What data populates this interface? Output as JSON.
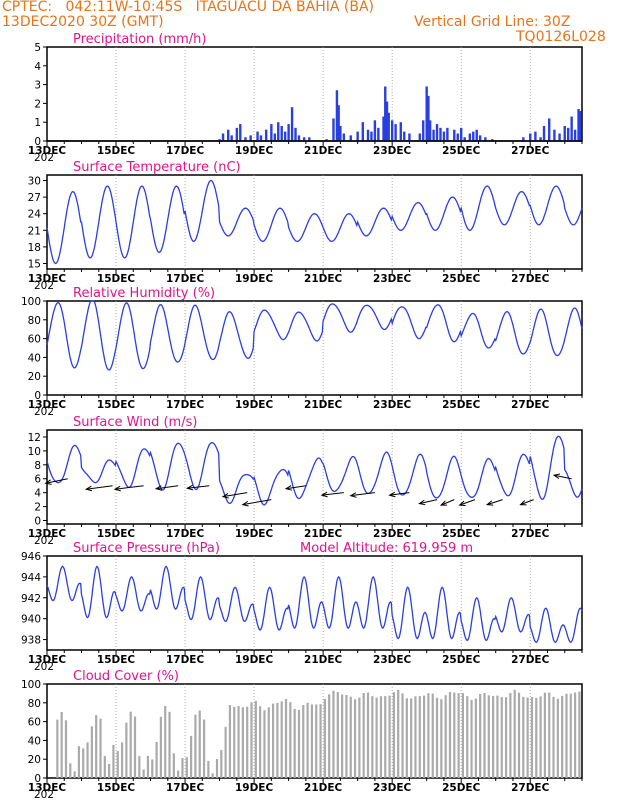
{
  "header": {
    "line1": "CPTEC:   042:11W-10:45S   ITAGUACU DA BAHIA (BA)",
    "line2": "13DEC2020 30Z (GMT)",
    "grid_note": "Vertical Grid Line: 30Z",
    "code": "TQ0126L028"
  },
  "colors": {
    "header": "#e8731a",
    "titles": "#e0148a",
    "series": "#2a3fe0",
    "bars": "#2a3fe0",
    "cloud": "#aaaaaa",
    "arrows": "#000000"
  },
  "x_axis": {
    "day_labels": [
      "13DEC",
      "15DEC",
      "17DEC",
      "19DEC",
      "21DEC",
      "23DEC",
      "25DEC",
      "27DEC"
    ],
    "day_label_offsets_days": [
      0,
      2,
      4,
      6,
      8,
      10,
      12,
      14
    ],
    "total_days": 15.5,
    "cut_label": "202"
  },
  "chart_data": [
    {
      "id": "precip",
      "type": "bar",
      "title": "Precipitation (mm/h)",
      "ylim": [
        0,
        5
      ],
      "yticks": [
        0,
        1,
        2,
        3,
        4,
        5
      ],
      "events": [
        [
          5.0,
          0.1
        ],
        [
          5.1,
          0.4
        ],
        [
          5.25,
          0.6
        ],
        [
          5.35,
          0.3
        ],
        [
          5.5,
          0.7
        ],
        [
          5.6,
          0.9
        ],
        [
          5.75,
          0.2
        ],
        [
          5.9,
          0.3
        ],
        [
          6.1,
          0.5
        ],
        [
          6.2,
          0.3
        ],
        [
          6.35,
          0.6
        ],
        [
          6.5,
          0.9
        ],
        [
          6.6,
          0.4
        ],
        [
          6.7,
          1.0
        ],
        [
          6.8,
          0.8
        ],
        [
          6.9,
          0.5
        ],
        [
          7.0,
          0.9
        ],
        [
          7.1,
          1.8
        ],
        [
          7.2,
          0.7
        ],
        [
          7.3,
          0.3
        ],
        [
          7.45,
          0.2
        ],
        [
          7.6,
          0.2
        ],
        [
          8.1,
          0.1
        ],
        [
          8.3,
          1.2
        ],
        [
          8.4,
          2.7
        ],
        [
          8.45,
          1.9
        ],
        [
          8.5,
          0.8
        ],
        [
          8.6,
          0.4
        ],
        [
          8.8,
          0.3
        ],
        [
          9.0,
          0.5
        ],
        [
          9.15,
          1.0
        ],
        [
          9.3,
          0.6
        ],
        [
          9.4,
          0.5
        ],
        [
          9.5,
          1.1
        ],
        [
          9.6,
          0.7
        ],
        [
          9.75,
          1.3
        ],
        [
          9.8,
          2.9
        ],
        [
          9.85,
          2.1
        ],
        [
          9.9,
          1.5
        ],
        [
          10.0,
          1.1
        ],
        [
          10.1,
          0.9
        ],
        [
          10.25,
          1.0
        ],
        [
          10.35,
          0.5
        ],
        [
          10.5,
          0.4
        ],
        [
          10.8,
          0.4
        ],
        [
          10.9,
          1.1
        ],
        [
          11.0,
          2.9
        ],
        [
          11.05,
          2.4
        ],
        [
          11.1,
          1.1
        ],
        [
          11.2,
          0.6
        ],
        [
          11.3,
          0.9
        ],
        [
          11.4,
          0.7
        ],
        [
          11.5,
          0.5
        ],
        [
          11.6,
          0.7
        ],
        [
          11.8,
          0.6
        ],
        [
          11.9,
          0.4
        ],
        [
          12.0,
          0.7
        ],
        [
          12.1,
          0.2
        ],
        [
          12.25,
          0.4
        ],
        [
          12.35,
          0.5
        ],
        [
          12.45,
          0.6
        ],
        [
          12.55,
          0.3
        ],
        [
          12.7,
          0.2
        ],
        [
          12.9,
          0.1
        ],
        [
          13.8,
          0.2
        ],
        [
          14.0,
          0.4
        ],
        [
          14.15,
          0.5
        ],
        [
          14.3,
          0.2
        ],
        [
          14.4,
          0.8
        ],
        [
          14.55,
          1.2
        ],
        [
          14.7,
          0.6
        ],
        [
          14.85,
          0.4
        ],
        [
          15.0,
          0.8
        ],
        [
          15.1,
          0.7
        ],
        [
          15.2,
          1.3
        ],
        [
          15.3,
          0.6
        ],
        [
          15.4,
          1.7
        ],
        [
          15.45,
          1.6
        ]
      ]
    },
    {
      "id": "temp",
      "type": "line",
      "title": "Surface Temperature (nC)",
      "ylim": [
        14,
        31
      ],
      "yticks": [
        15,
        18,
        21,
        24,
        27,
        30
      ],
      "daily_max": [
        28,
        29,
        29,
        29,
        30,
        25,
        25,
        24,
        24,
        25,
        26,
        27,
        29,
        28,
        29,
        28
      ],
      "daily_min": [
        15,
        16,
        16,
        17,
        19,
        20,
        19,
        19,
        19,
        20,
        21,
        21,
        21,
        22,
        22,
        22
      ],
      "max_phase": 0.75
    },
    {
      "id": "rh",
      "type": "line",
      "title": "Relative Humidity (%)",
      "ylim": [
        0,
        100
      ],
      "yticks": [
        0,
        20,
        40,
        60,
        80,
        100
      ],
      "daily_max": [
        99,
        99,
        96,
        94,
        96,
        90,
        90,
        88,
        95,
        96,
        96,
        98,
        88,
        86,
        89,
        90
      ],
      "daily_min": [
        30,
        28,
        28,
        34,
        34,
        38,
        60,
        60,
        70,
        70,
        60,
        55,
        50,
        45,
        42,
        42
      ],
      "max_phase": 0.3
    },
    {
      "id": "wind",
      "type": "line",
      "title": "Surface Wind (m/s)",
      "ylim": [
        -0.5,
        13
      ],
      "yticks": [
        0,
        2,
        4,
        6,
        8,
        10,
        12
      ],
      "daily_max": [
        11,
        9,
        10,
        11,
        11,
        7,
        8,
        9,
        9,
        9,
        9,
        9,
        9,
        10,
        12,
        8
      ],
      "daily_min": [
        5,
        5,
        5,
        5,
        5,
        3,
        2,
        3,
        4,
        4,
        4,
        3,
        3,
        3,
        3,
        4
      ],
      "max_phase": 0.82,
      "arrows": [
        [
          0.6,
          6,
          -10,
          -9
        ],
        [
          1.9,
          5,
          -12,
          -7
        ],
        [
          2.8,
          5,
          -13,
          -7
        ],
        [
          3.8,
          5,
          -10,
          -6
        ],
        [
          4.7,
          5,
          -10,
          -5
        ],
        [
          5.8,
          4,
          -11,
          -8
        ],
        [
          6.5,
          3,
          -13,
          -10
        ],
        [
          7.5,
          5,
          -9,
          -6
        ],
        [
          8.6,
          4,
          -10,
          -5
        ],
        [
          9.5,
          4,
          -11,
          -6
        ],
        [
          10.5,
          4,
          -9,
          -5
        ],
        [
          11.3,
          3,
          -8,
          -8
        ],
        [
          11.8,
          3,
          -6,
          -11
        ],
        [
          12.4,
          3,
          -7,
          -11
        ],
        [
          13.2,
          3,
          -7,
          -10
        ],
        [
          14.1,
          3,
          -6,
          -10
        ],
        [
          15.2,
          6,
          -8,
          7
        ]
      ]
    },
    {
      "id": "pres",
      "type": "line",
      "title": "Surface Pressure (hPa)",
      "extra_label": "Model Altitude: 619.959 m",
      "ylim": [
        937,
        946
      ],
      "yticks": [
        938,
        940,
        942,
        944,
        946
      ],
      "daily_max": [
        945,
        945,
        944,
        945,
        944,
        943,
        943,
        944,
        944,
        944,
        943,
        943,
        942,
        942,
        941,
        941
      ],
      "daily_min": [
        941,
        939,
        940,
        940,
        939,
        939,
        938,
        938,
        938,
        938,
        937,
        937,
        937,
        938,
        937,
        937
      ]
    },
    {
      "id": "cloud",
      "type": "bar",
      "title": "Cloud Cover (%)",
      "ylim": [
        0,
        100
      ],
      "yticks": [
        0,
        20,
        40,
        60,
        80,
        100
      ]
    }
  ]
}
